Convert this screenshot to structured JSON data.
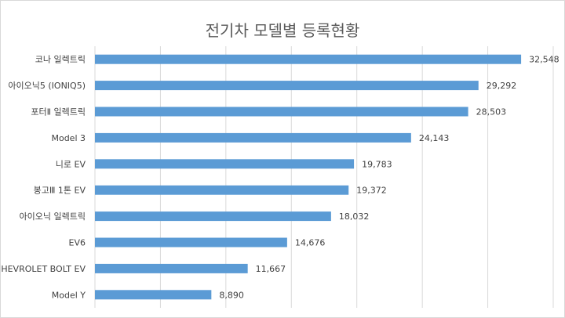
{
  "chart_data": {
    "type": "bar",
    "orientation": "horizontal",
    "title": "전기차 모델별 등록현황",
    "categories": [
      "코나 일렉트릭",
      "아이오닉5 (IONIQ5)",
      "포터Ⅱ 일렉트릭",
      "Model 3",
      "니로 EV",
      "봉고Ⅲ 1톤 EV",
      "아이오닉 일렉트릭",
      "EV6",
      "CHEVROLET BOLT EV",
      "Model Y"
    ],
    "values": [
      32548,
      29292,
      28503,
      24143,
      19783,
      19372,
      18032,
      14676,
      11667,
      8890
    ],
    "data_labels": [
      "32,548",
      "29,292",
      "28,503",
      "24,143",
      "19,783",
      "19,372",
      "18,032",
      "14,676",
      "11,667",
      "8,890"
    ],
    "xlim": [
      0,
      35000
    ],
    "grid": true,
    "bar_color": "#5b9bd5"
  }
}
